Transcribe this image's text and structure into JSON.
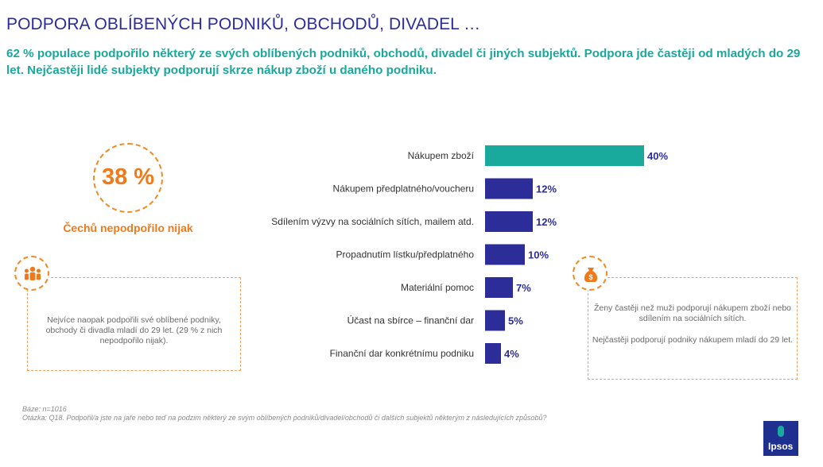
{
  "title": "PODPORA OBLÍBENÝCH PODNIKŮ, OBCHODŮ, DIVADEL …",
  "subtitle": "62 % populace podpořilo některý ze svých oblíbených podniků, obchodů, divadel či jiných subjektů. Podpora jde častěji od mladých do 29 let. Nejčastěji lidé subjekty podporují skrze nákup zboží u daného podniku.",
  "highlight": {
    "value": "38 %",
    "label": "Čechů nepodpořilo nijak"
  },
  "notes": {
    "left": "Nejvíce naopak podpořili své oblíbené podniky, obchody či divadla mladí do 29 let. (29 % z nich nepodpořilo nijak).",
    "right_1": "Ženy častěji než muži podporují nákupem zboží nebo sdílením na sociálních sítích.",
    "right_2": "Nejčastěji podporují podniky nákupem mladí do 29 let."
  },
  "icons": {
    "left": "people-group-icon",
    "right": "money-bag-icon"
  },
  "colors": {
    "highlight_bar": "#19a99d",
    "bar": "#2d2d9a",
    "accent": "#f07a1a"
  },
  "chart_data": {
    "type": "bar",
    "orientation": "horizontal",
    "categories": [
      "Nákupem zboží",
      "Nákupem předplatného/voucheru",
      "Sdílením výzvy na sociálních sítích, mailem atd.",
      "Propadnutím lístku/předplatného",
      "Materiální pomoc",
      "Účast na sbírce – finanční dar",
      "Finanční dar konkrétnímu podniku"
    ],
    "values": [
      40,
      12,
      12,
      10,
      7,
      5,
      4
    ],
    "value_labels": [
      "40%",
      "12%",
      "12%",
      "10%",
      "7%",
      "5%",
      "4%"
    ],
    "unit": "%",
    "highlight_index": 0,
    "xlim": [
      0,
      40
    ],
    "grid": false,
    "legend": "none"
  },
  "footer": {
    "base": "Báze: n=1016",
    "question": "Otázka: Q18. Podpořil/a jste na jaře nebo teď na podzim některý ze svým oblíbených podniků/divadel/obchodů či dalších subjektů některým z následujících způsobů?"
  },
  "logo": "Ipsos"
}
